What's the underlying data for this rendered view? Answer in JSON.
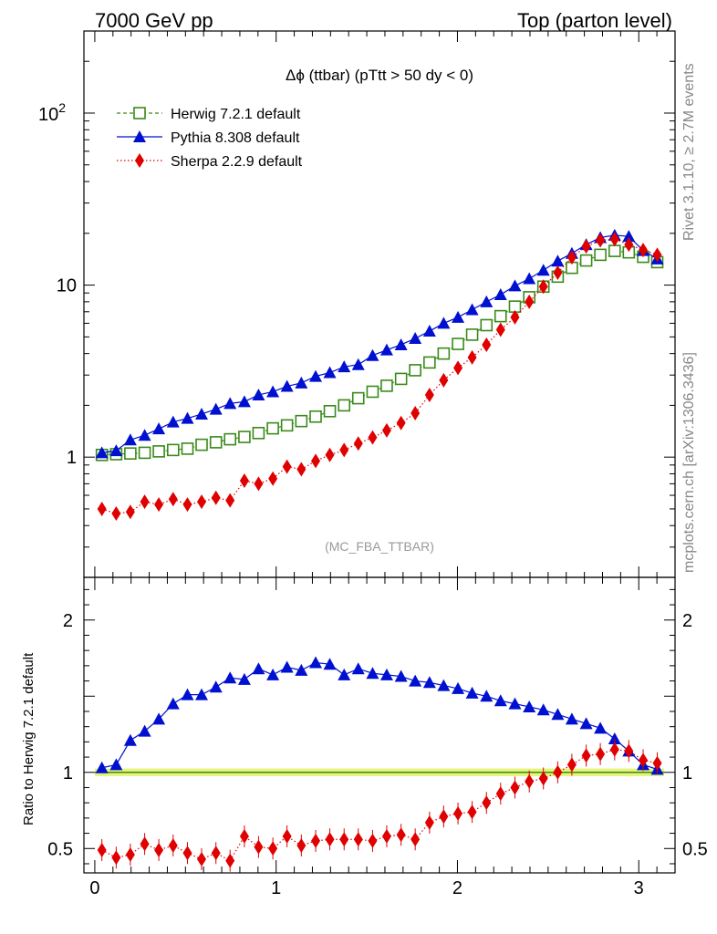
{
  "header": {
    "left": "7000 GeV pp",
    "right": "Top (parton level)"
  },
  "side_labels": {
    "rivet": "Rivet 3.1.10, ≥ 2.7M events",
    "source": "mcplots.cern.ch [arXiv:1306.3436]"
  },
  "plot_title": "Δϕ (ttbar) (pTtt > 50 dy < 0)",
  "analysis_tag": "(MC_FBA_TTBAR)",
  "ratio_ylabel": "Ratio to Herwig 7.2.1 default",
  "colors": {
    "herwig": "#3a8a1a",
    "pythia": "#0010d0",
    "sherpa": "#e00000",
    "band": "#e6f47a",
    "axis": "#000000"
  },
  "chart_data": [
    {
      "type": "line",
      "panel": "main",
      "yscale": "log",
      "xlim": [
        -0.06,
        3.2
      ],
      "ylim": [
        0.2,
        300
      ],
      "yticks": [
        {
          "v": 1,
          "label": "1"
        },
        {
          "v": 10,
          "label": "10"
        },
        {
          "v": 100,
          "label": "10^2"
        }
      ],
      "xticks": [
        0,
        1,
        2,
        3
      ],
      "x": [
        0.039,
        0.118,
        0.196,
        0.275,
        0.353,
        0.432,
        0.511,
        0.589,
        0.668,
        0.746,
        0.825,
        0.903,
        0.982,
        1.06,
        1.139,
        1.218,
        1.296,
        1.375,
        1.453,
        1.532,
        1.61,
        1.689,
        1.767,
        1.846,
        1.924,
        2.003,
        2.081,
        2.16,
        2.238,
        2.317,
        2.396,
        2.474,
        2.553,
        2.631,
        2.71,
        2.788,
        2.867,
        2.945,
        3.024,
        3.102
      ],
      "series": [
        {
          "name": "Herwig 7.2.1 default",
          "key": "herwig",
          "marker": "open-square",
          "line": "dashed",
          "values": [
            1.03,
            1.04,
            1.05,
            1.06,
            1.08,
            1.1,
            1.12,
            1.18,
            1.22,
            1.27,
            1.31,
            1.38,
            1.47,
            1.53,
            1.62,
            1.72,
            1.85,
            2.0,
            2.2,
            2.4,
            2.6,
            2.85,
            3.2,
            3.55,
            4.0,
            4.55,
            5.15,
            5.85,
            6.6,
            7.5,
            8.5,
            9.8,
            11.2,
            12.6,
            13.9,
            15.0,
            15.8,
            15.5,
            14.6,
            13.6
          ]
        },
        {
          "name": "Pythia 8.308 default",
          "key": "pythia",
          "marker": "filled-triangle",
          "line": "solid",
          "values": [
            1.06,
            1.09,
            1.26,
            1.34,
            1.46,
            1.6,
            1.68,
            1.78,
            1.9,
            2.05,
            2.1,
            2.3,
            2.4,
            2.58,
            2.7,
            2.95,
            3.1,
            3.35,
            3.45,
            3.9,
            4.2,
            4.5,
            4.9,
            5.4,
            6.0,
            6.5,
            7.2,
            8.0,
            8.8,
            9.9,
            10.9,
            12.2,
            13.8,
            15.3,
            17.2,
            18.9,
            19.5,
            19.2,
            15.9,
            14.2
          ]
        },
        {
          "name": "Sherpa 2.2.9 default",
          "key": "sherpa",
          "marker": "filled-diamond",
          "line": "dotted",
          "values": [
            0.5,
            0.47,
            0.48,
            0.55,
            0.53,
            0.57,
            0.53,
            0.55,
            0.58,
            0.56,
            0.73,
            0.7,
            0.75,
            0.88,
            0.85,
            0.95,
            1.03,
            1.1,
            1.2,
            1.3,
            1.43,
            1.58,
            1.8,
            2.3,
            2.8,
            3.3,
            3.8,
            4.5,
            5.5,
            6.5,
            8.0,
            9.8,
            11.8,
            14.5,
            16.8,
            18.2,
            18.5,
            17.2,
            16.0,
            15.0
          ]
        }
      ]
    },
    {
      "type": "line",
      "panel": "ratio",
      "yscale": "linear",
      "xlim": [
        -0.06,
        3.2
      ],
      "ylim": [
        0.34,
        2.28
      ],
      "yticks": [
        {
          "v": 0.5,
          "label": "0.5"
        },
        {
          "v": 1,
          "label": "1"
        },
        {
          "v": 2,
          "label": "2"
        }
      ],
      "xticks": [
        0,
        1,
        2,
        3
      ],
      "reference": 1.0,
      "x": [
        0.039,
        0.118,
        0.196,
        0.275,
        0.353,
        0.432,
        0.511,
        0.589,
        0.668,
        0.746,
        0.825,
        0.903,
        0.982,
        1.06,
        1.139,
        1.218,
        1.296,
        1.375,
        1.453,
        1.532,
        1.61,
        1.689,
        1.767,
        1.846,
        1.924,
        2.003,
        2.081,
        2.16,
        2.238,
        2.317,
        2.396,
        2.474,
        2.553,
        2.631,
        2.71,
        2.788,
        2.867,
        2.945,
        3.024,
        3.102
      ],
      "series": [
        {
          "name": "Pythia 8.308 default",
          "key": "pythia",
          "marker": "filled-triangle",
          "line": "solid",
          "values": [
            1.03,
            1.05,
            1.21,
            1.27,
            1.35,
            1.45,
            1.51,
            1.51,
            1.56,
            1.62,
            1.61,
            1.68,
            1.64,
            1.69,
            1.67,
            1.72,
            1.71,
            1.64,
            1.68,
            1.65,
            1.64,
            1.63,
            1.6,
            1.59,
            1.57,
            1.55,
            1.52,
            1.5,
            1.47,
            1.45,
            1.43,
            1.41,
            1.38,
            1.35,
            1.32,
            1.29,
            1.22,
            1.14,
            1.05,
            1.02
          ]
        },
        {
          "name": "Sherpa 2.2.9 default",
          "key": "sherpa",
          "marker": "filled-diamond",
          "line": "dotted",
          "values": [
            0.49,
            0.44,
            0.46,
            0.53,
            0.49,
            0.52,
            0.47,
            0.43,
            0.47,
            0.42,
            0.58,
            0.51,
            0.5,
            0.58,
            0.52,
            0.55,
            0.56,
            0.56,
            0.56,
            0.55,
            0.58,
            0.59,
            0.56,
            0.67,
            0.71,
            0.73,
            0.74,
            0.8,
            0.86,
            0.9,
            0.94,
            0.96,
            1.0,
            1.05,
            1.11,
            1.12,
            1.15,
            1.14,
            1.08,
            1.06
          ]
        }
      ]
    }
  ]
}
